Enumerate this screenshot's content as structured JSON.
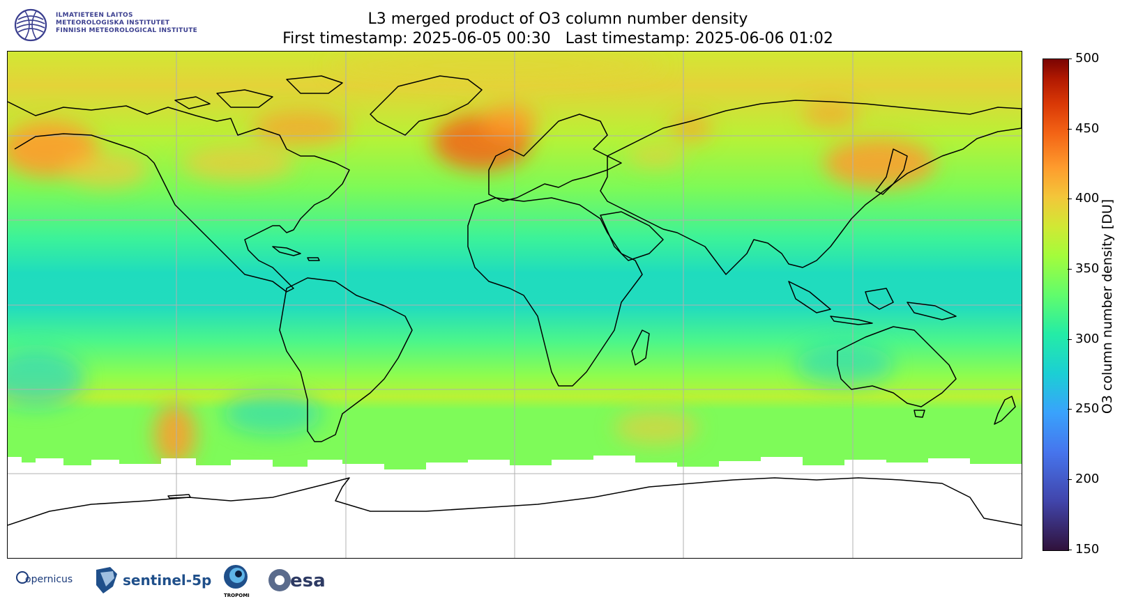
{
  "header": {
    "institute_lines": [
      "ILMATIETEEN LAITOS",
      "METEOROLOGISKA INSTITUTET",
      "FINNISH METEOROLOGICAL INSTITUTE"
    ],
    "title_line1": "L3 merged product of O3 column number density",
    "title_line2": "First timestamp: 2025-06-05 00:30   Last timestamp: 2025-06-06 01:02"
  },
  "map": {
    "projection": "PlateCarree",
    "gridlines": true,
    "colormap": "turbo",
    "no_data_color": "#ffffff",
    "coastline_color": "#000000"
  },
  "colorbar": {
    "label": "O3 column number density [DU]",
    "min": 150,
    "max": 500,
    "ticks": [
      "500",
      "450",
      "400",
      "350",
      "300",
      "250",
      "200",
      "150"
    ]
  },
  "footer": {
    "partners": [
      "opernicus",
      "sentinel-5p",
      "TROPOMI",
      "esa"
    ]
  }
}
